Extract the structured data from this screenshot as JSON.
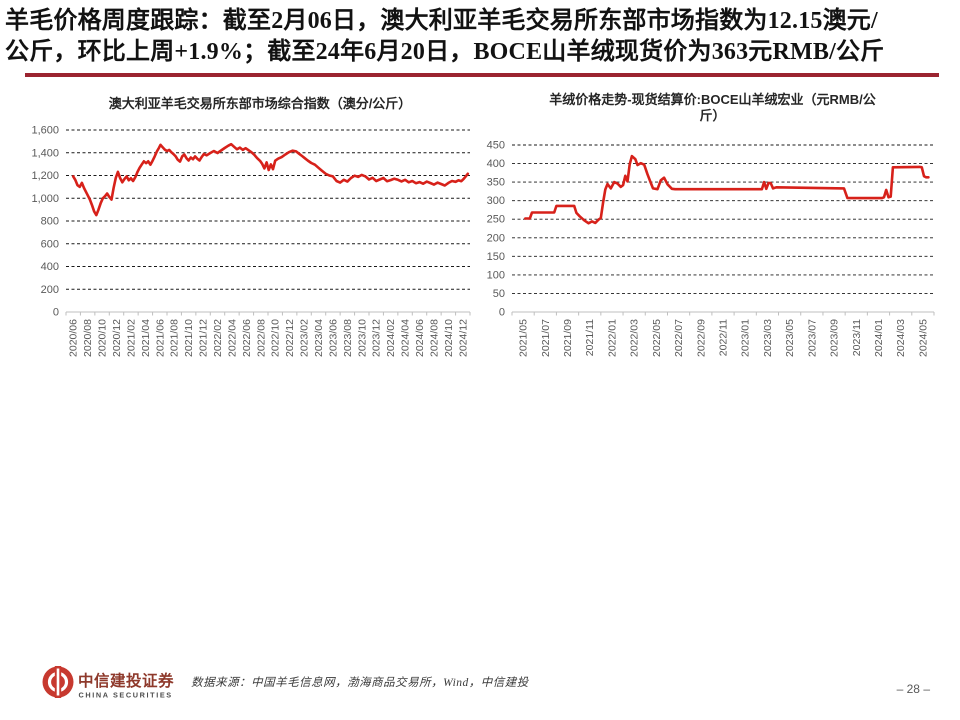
{
  "page": {
    "title_line1": "羊毛价格周度跟踪：截至2月06日，澳大利亚羊毛交易所东部市场指数为12.15澳元/",
    "title_line2": "公斤，环比上周+1.9%；截至24年6月20日，BOCE山羊绒现货价为363元RMB/公斤",
    "charts": {
      "left_title_display": "澳大利亚羊毛交易所东部市场综合指数（澳分/公斤）",
      "right_title_display": "羊绒价格走势-现货结算价:BOCE山羊绒宏业（元RMB/公\n斤）"
    }
  },
  "footer": {
    "source": "数据来源：中国羊毛信息网，渤海商品交易所，Wind，中信建投",
    "brand_cn": "中信建投证券",
    "brand_en": "CHINA SECURITIES",
    "page_number": "– 28 –"
  },
  "colors": {
    "line_red": "#d7211a",
    "underline_red": "#9b2430",
    "logo_red": "#c7392f",
    "brand_text": "#8e392b",
    "axis_label": "#595959",
    "grid": "#1a1a1a",
    "axis_line": "#bfbfbf"
  },
  "chart_data": [
    {
      "type": "line",
      "title": "澳大利亚羊毛交易所东部市场综合指数（澳分/公斤）",
      "ylabel": "澳分/公斤",
      "ylim": [
        0,
        1600
      ],
      "y_tick_labels": [
        "0",
        "200",
        "400",
        "600",
        "800",
        "1,000",
        "1,200",
        "1,400",
        "1,600"
      ],
      "x_tick_labels": [
        "2020/06",
        "2020/08",
        "2020/10",
        "2020/12",
        "2021/02",
        "2021/04",
        "2021/06",
        "2021/08",
        "2021/10",
        "2021/12",
        "2022/02",
        "2022/04",
        "2022/06",
        "2022/08",
        "2022/10",
        "2022/12",
        "2023/02",
        "2023/04",
        "2023/06",
        "2023/08",
        "2023/10",
        "2023/12",
        "2024/02",
        "2024/04",
        "2024/06",
        "2024/08",
        "2024/10",
        "2024/12"
      ],
      "x_months_per_label": 2,
      "grid": "horizontal-dashed",
      "legend": "none",
      "series": [
        {
          "name": "澳大利亚羊毛交易所东部市场综合指数",
          "color": "#d7211a",
          "points_x_unit": "months_since_2020_06",
          "points": [
            [
              0,
              1192
            ],
            [
              0.3,
              1160
            ],
            [
              0.6,
              1115
            ],
            [
              0.9,
              1100
            ],
            [
              1.2,
              1135
            ],
            [
              1.5,
              1090
            ],
            [
              1.9,
              1040
            ],
            [
              2.3,
              990
            ],
            [
              2.6,
              940
            ],
            [
              2.9,
              885
            ],
            [
              3.2,
              852
            ],
            [
              3.5,
              900
            ],
            [
              3.8,
              955
            ],
            [
              4.1,
              1000
            ],
            [
              4.4,
              1018
            ],
            [
              4.7,
              1042
            ],
            [
              5,
              1012
            ],
            [
              5.3,
              988
            ],
            [
              5.6,
              1090
            ],
            [
              5.9,
              1180
            ],
            [
              6.2,
              1232
            ],
            [
              6.5,
              1178
            ],
            [
              6.8,
              1140
            ],
            [
              7.1,
              1168
            ],
            [
              7.4,
              1192
            ],
            [
              7.7,
              1158
            ],
            [
              8,
              1175
            ],
            [
              8.3,
              1152
            ],
            [
              8.6,
              1185
            ],
            [
              8.9,
              1230
            ],
            [
              9.2,
              1268
            ],
            [
              9.5,
              1298
            ],
            [
              9.8,
              1325
            ],
            [
              10.1,
              1308
            ],
            [
              10.4,
              1325
            ],
            [
              10.7,
              1295
            ],
            [
              11,
              1330
            ],
            [
              11.3,
              1368
            ],
            [
              11.6,
              1412
            ],
            [
              11.9,
              1445
            ],
            [
              12.1,
              1470
            ],
            [
              12.4,
              1448
            ],
            [
              12.7,
              1428
            ],
            [
              13,
              1415
            ],
            [
              13.3,
              1425
            ],
            [
              13.6,
              1405
            ],
            [
              13.9,
              1388
            ],
            [
              14.2,
              1368
            ],
            [
              14.5,
              1338
            ],
            [
              14.8,
              1322
            ],
            [
              15.1,
              1368
            ],
            [
              15.4,
              1385
            ],
            [
              15.7,
              1352
            ],
            [
              16,
              1332
            ],
            [
              16.3,
              1358
            ],
            [
              16.6,
              1342
            ],
            [
              16.9,
              1368
            ],
            [
              17.2,
              1348
            ],
            [
              17.5,
              1332
            ],
            [
              17.8,
              1362
            ],
            [
              18.1,
              1388
            ],
            [
              18.5,
              1378
            ],
            [
              19,
              1398
            ],
            [
              19.5,
              1415
            ],
            [
              20,
              1398
            ],
            [
              20.5,
              1420
            ],
            [
              21,
              1442
            ],
            [
              21.5,
              1462
            ],
            [
              21.9,
              1475
            ],
            [
              22.3,
              1452
            ],
            [
              22.7,
              1430
            ],
            [
              23.1,
              1445
            ],
            [
              23.5,
              1425
            ],
            [
              23.9,
              1440
            ],
            [
              24.3,
              1422
            ],
            [
              24.7,
              1405
            ],
            [
              25.1,
              1382
            ],
            [
              25.5,
              1352
            ],
            [
              25.9,
              1328
            ],
            [
              26.2,
              1302
            ],
            [
              26.5,
              1262
            ],
            [
              26.8,
              1315
            ],
            [
              27.1,
              1248
            ],
            [
              27.4,
              1298
            ],
            [
              27.7,
              1255
            ],
            [
              28,
              1330
            ],
            [
              28.4,
              1348
            ],
            [
              28.9,
              1362
            ],
            [
              29.4,
              1385
            ],
            [
              29.9,
              1405
            ],
            [
              30.4,
              1418
            ],
            [
              30.9,
              1412
            ],
            [
              31.3,
              1392
            ],
            [
              31.7,
              1372
            ],
            [
              32.1,
              1352
            ],
            [
              32.5,
              1332
            ],
            [
              33,
              1310
            ],
            [
              33.5,
              1295
            ],
            [
              34,
              1268
            ],
            [
              34.5,
              1240
            ],
            [
              35,
              1215
            ],
            [
              35.5,
              1200
            ],
            [
              36,
              1192
            ],
            [
              36.5,
              1152
            ],
            [
              37,
              1138
            ],
            [
              37.5,
              1162
            ],
            [
              38,
              1146
            ],
            [
              38.5,
              1178
            ],
            [
              39,
              1198
            ],
            [
              39.5,
              1188
            ],
            [
              40,
              1205
            ],
            [
              40.5,
              1192
            ],
            [
              41,
              1165
            ],
            [
              41.5,
              1180
            ],
            [
              42,
              1152
            ],
            [
              42.5,
              1165
            ],
            [
              43,
              1178
            ],
            [
              43.5,
              1150
            ],
            [
              44,
              1160
            ],
            [
              44.5,
              1172
            ],
            [
              45,
              1162
            ],
            [
              45.5,
              1148
            ],
            [
              46,
              1162
            ],
            [
              46.5,
              1140
            ],
            [
              47,
              1152
            ],
            [
              47.5,
              1132
            ],
            [
              48,
              1142
            ],
            [
              48.5,
              1128
            ],
            [
              49,
              1146
            ],
            [
              49.5,
              1134
            ],
            [
              50,
              1120
            ],
            [
              50.5,
              1138
            ],
            [
              51,
              1125
            ],
            [
              51.5,
              1112
            ],
            [
              52,
              1135
            ],
            [
              52.5,
              1152
            ],
            [
              53,
              1145
            ],
            [
              53.4,
              1158
            ],
            [
              53.8,
              1150
            ],
            [
              54.1,
              1168
            ],
            [
              54.4,
              1192
            ],
            [
              54.7,
              1215
            ]
          ]
        }
      ]
    },
    {
      "type": "line",
      "title": "羊绒价格走势-现货结算价:BOCE山羊绒宏业（元RMB/公斤）",
      "ylabel": "元RMB/公斤",
      "ylim": [
        0,
        450
      ],
      "y_tick_labels": [
        "0",
        "50",
        "100",
        "150",
        "200",
        "250",
        "300",
        "350",
        "400",
        "450"
      ],
      "x_tick_labels": [
        "2021/05",
        "2021/07",
        "2021/09",
        "2021/11",
        "2022/01",
        "2022/03",
        "2022/05",
        "2022/07",
        "2022/09",
        "2022/11",
        "2023/01",
        "2023/03",
        "2023/05",
        "2023/07",
        "2023/09",
        "2023/11",
        "2024/01",
        "2024/03",
        "2024/05"
      ],
      "x_months_per_label": 2,
      "grid": "horizontal-dashed",
      "legend": "none",
      "series": [
        {
          "name": "BOCE山羊绒现货结算价",
          "color": "#d7211a",
          "points_x_unit": "months_since_2021_05",
          "points": [
            [
              0.2,
              252
            ],
            [
              0.6,
              252
            ],
            [
              0.8,
              268
            ],
            [
              2.8,
              268
            ],
            [
              3,
              286
            ],
            [
              4.6,
              286
            ],
            [
              4.8,
              267
            ],
            [
              5.1,
              258
            ],
            [
              5.5,
              247
            ],
            [
              5.9,
              239
            ],
            [
              6.2,
              244
            ],
            [
              6.5,
              240
            ],
            [
              6.8,
              249
            ],
            [
              7,
              253
            ],
            [
              7.2,
              295
            ],
            [
              7.4,
              330
            ],
            [
              7.6,
              345
            ],
            [
              7.9,
              333
            ],
            [
              8.2,
              350
            ],
            [
              8.5,
              346
            ],
            [
              8.8,
              337
            ],
            [
              9,
              342
            ],
            [
              9.2,
              367
            ],
            [
              9.4,
              352
            ],
            [
              9.6,
              398
            ],
            [
              9.8,
              420
            ],
            [
              10.1,
              412
            ],
            [
              10.3,
              396
            ],
            [
              10.6,
              401
            ],
            [
              10.9,
              397
            ],
            [
              11.2,
              371
            ],
            [
              11.5,
              348
            ],
            [
              11.7,
              333
            ],
            [
              12.1,
              331
            ],
            [
              12.4,
              355
            ],
            [
              12.7,
              362
            ],
            [
              13,
              344
            ],
            [
              13.4,
              332
            ],
            [
              13.7,
              331
            ],
            [
              21.5,
              331
            ],
            [
              21.7,
              350
            ],
            [
              21.9,
              332
            ],
            [
              22.1,
              348
            ],
            [
              22.3,
              347
            ],
            [
              22.5,
              333
            ],
            [
              22.8,
              336
            ],
            [
              28.9,
              333
            ],
            [
              29.2,
              307
            ],
            [
              32.3,
              307
            ],
            [
              32.5,
              309
            ],
            [
              32.7,
              329
            ],
            [
              32.9,
              309
            ],
            [
              33.1,
              311
            ],
            [
              33.3,
              390
            ],
            [
              35.7,
              391
            ],
            [
              35.9,
              390
            ],
            [
              36.1,
              366
            ],
            [
              36.3,
              363
            ],
            [
              36.5,
              363
            ]
          ]
        }
      ]
    }
  ]
}
